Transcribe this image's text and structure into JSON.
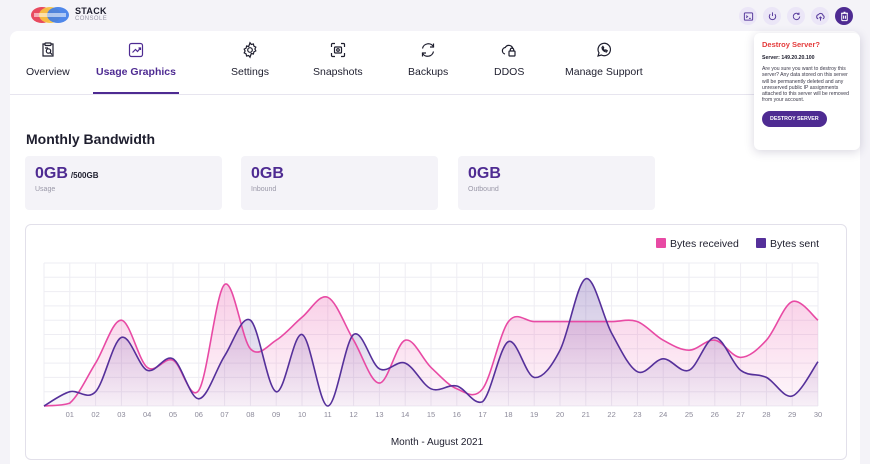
{
  "brand": {
    "title": "STACK",
    "subtitle": "CONSOLE"
  },
  "toolbar": {
    "icons": [
      "console-icon",
      "power-icon",
      "refresh-icon",
      "cloud-upload-icon",
      "trash-icon"
    ]
  },
  "tabs": [
    {
      "label": "Overview",
      "icon": "clipboard-search-icon"
    },
    {
      "label": "Usage Graphics",
      "icon": "chart-icon",
      "active": true
    },
    {
      "label": "Settings",
      "icon": "gear-icon"
    },
    {
      "label": "Snapshots",
      "icon": "snapshot-icon"
    },
    {
      "label": "Backups",
      "icon": "backup-icon"
    },
    {
      "label": "DDOS",
      "icon": "cloud-lock-icon"
    },
    {
      "label": "Manage Support",
      "icon": "whatsapp-icon"
    }
  ],
  "section": {
    "title": "Monthly Bandwidth"
  },
  "stats": {
    "usage": {
      "value": "0GB",
      "suffix": "/500GB",
      "label": "Usage"
    },
    "inbound": {
      "value": "0GB",
      "label": "Inbound"
    },
    "outbound": {
      "value": "0GB",
      "label": "Outbound"
    }
  },
  "popover": {
    "title": "Destroy Server?",
    "server": "Server: 149.20.20.100",
    "body": "Are you sure you want to destroy this server? Any data stored on this server will be permanently deleted and any unreserved public IP assignments attached to this server will be removed from your account.",
    "button": "DESTROY SERVER"
  },
  "chart_data": {
    "type": "area",
    "xlabel": "Month - August 2021",
    "ylabel": "",
    "x": [
      "01",
      "02",
      "03",
      "04",
      "05",
      "06",
      "07",
      "08",
      "09",
      "10",
      "11",
      "12",
      "13",
      "14",
      "15",
      "16",
      "17",
      "18",
      "19",
      "20",
      "21",
      "22",
      "23",
      "24",
      "25",
      "26",
      "27",
      "28",
      "29",
      "30"
    ],
    "ylim": [
      0,
      10
    ],
    "grid": true,
    "legend_position": "top-right",
    "colors": {
      "received": "#e84aa4",
      "sent": "#55309a"
    },
    "series": [
      {
        "name": "Bytes received",
        "color": "#e84aa4",
        "values": [
          0.2,
          3.0,
          6.0,
          2.7,
          3.2,
          1.1,
          8.5,
          4.0,
          4.6,
          6.2,
          7.6,
          4.6,
          1.6,
          4.6,
          2.7,
          1.2,
          1.2,
          5.9,
          5.9,
          5.9,
          5.9,
          5.9,
          5.9,
          4.6,
          3.9,
          4.6,
          3.4,
          4.6,
          7.3,
          6.0
        ],
        "start": 0
      },
      {
        "name": "Bytes sent",
        "color": "#55309a",
        "values": [
          1.0,
          1.0,
          4.8,
          2.5,
          3.3,
          0.5,
          3.5,
          6.0,
          1.0,
          5.0,
          0.0,
          5.0,
          2.6,
          3.0,
          1.2,
          1.4,
          0.3,
          4.5,
          2.0,
          3.9,
          8.9,
          5.1,
          2.4,
          3.3,
          2.5,
          4.8,
          2.5,
          2.0,
          0.7,
          3.1
        ],
        "start": 0
      }
    ]
  }
}
